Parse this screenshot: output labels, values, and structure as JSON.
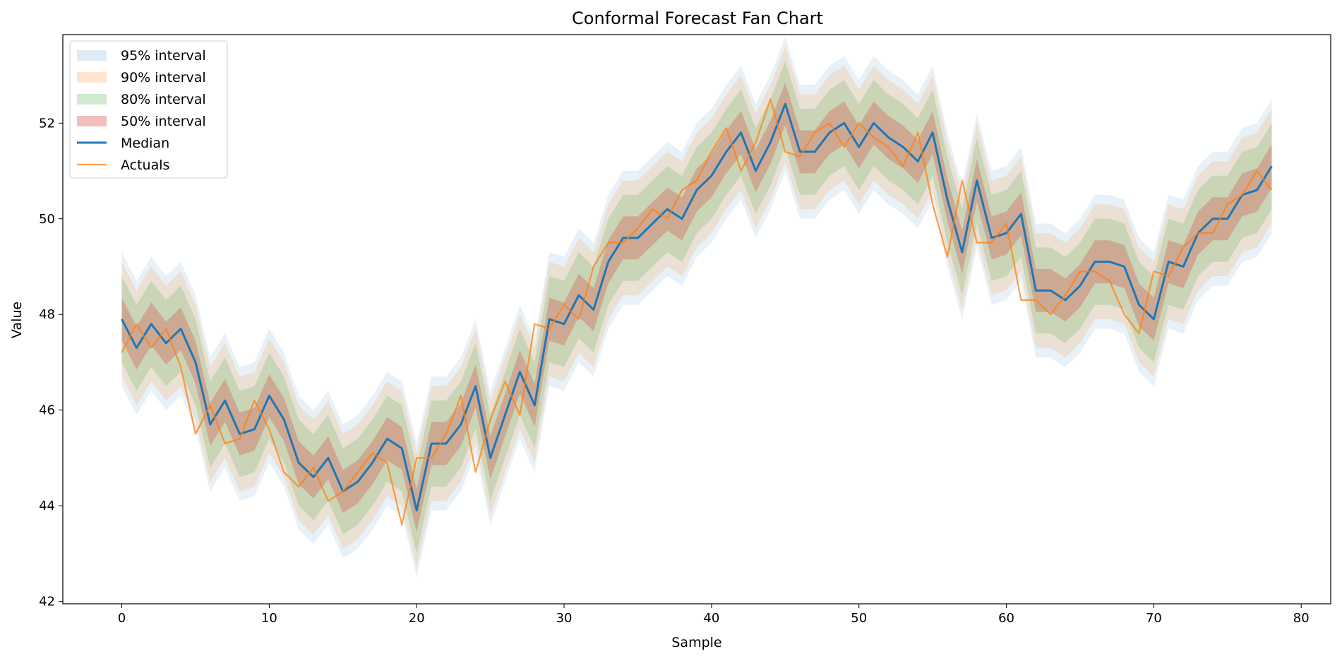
{
  "chart_data": {
    "type": "line",
    "title": "Conformal Forecast Fan Chart",
    "xlabel": "Sample",
    "ylabel": "Value",
    "xlim": [
      -4,
      82
    ],
    "ylim": [
      41.95,
      53.85
    ],
    "x_ticks": [
      0,
      10,
      20,
      30,
      40,
      50,
      60,
      70,
      80
    ],
    "y_ticks": [
      42,
      44,
      46,
      48,
      50,
      52
    ],
    "legend_position": "upper-left",
    "x": [
      0,
      1,
      2,
      3,
      4,
      5,
      6,
      7,
      8,
      9,
      10,
      11,
      12,
      13,
      14,
      15,
      16,
      17,
      18,
      19,
      20,
      21,
      22,
      23,
      24,
      25,
      26,
      27,
      28,
      29,
      30,
      31,
      32,
      33,
      34,
      35,
      36,
      37,
      38,
      39,
      40,
      41,
      42,
      43,
      44,
      45,
      46,
      47,
      48,
      49,
      50,
      51,
      52,
      53,
      54,
      55,
      56,
      57,
      58,
      59,
      60,
      61,
      62,
      63,
      64,
      65,
      66,
      67,
      68,
      69,
      70,
      71,
      72,
      73,
      74,
      75,
      76,
      77,
      78
    ],
    "median": [
      47.9,
      47.3,
      47.8,
      47.4,
      47.7,
      47.0,
      45.7,
      46.2,
      45.5,
      45.6,
      46.3,
      45.8,
      44.9,
      44.6,
      45.0,
      44.3,
      44.5,
      44.9,
      45.4,
      45.2,
      43.9,
      45.3,
      45.3,
      45.7,
      46.5,
      45.0,
      45.9,
      46.8,
      46.1,
      47.9,
      47.8,
      48.4,
      48.1,
      49.1,
      49.6,
      49.6,
      49.9,
      50.2,
      50.0,
      50.6,
      50.9,
      51.4,
      51.8,
      51.0,
      51.6,
      52.4,
      51.4,
      51.4,
      51.8,
      52.0,
      51.5,
      52.0,
      51.7,
      51.5,
      51.2,
      51.8,
      50.4,
      49.3,
      50.8,
      49.6,
      49.7,
      50.1,
      48.5,
      48.5,
      48.3,
      48.6,
      49.1,
      49.1,
      49.0,
      48.2,
      47.9,
      49.1,
      49.0,
      49.7,
      50.0,
      50.0,
      50.5,
      50.6,
      51.1
    ],
    "half_widths": {
      "95": 1.4,
      "90": 1.2,
      "80": 0.9,
      "50": 0.45
    },
    "series": [
      {
        "name": "95% interval",
        "kind": "band",
        "level": "95",
        "color": "#1f77b4",
        "opacity": 0.1
      },
      {
        "name": "90% interval",
        "kind": "band",
        "level": "90",
        "color": "#ff7f0e",
        "opacity": 0.15
      },
      {
        "name": "80% interval",
        "kind": "band",
        "level": "80",
        "color": "#2ca02c",
        "opacity": 0.17
      },
      {
        "name": "50% interval",
        "kind": "band",
        "level": "50",
        "color": "#d62728",
        "opacity": 0.25
      },
      {
        "name": "Median",
        "kind": "line",
        "color": "#1f77b4",
        "width": 3
      },
      {
        "name": "Actuals",
        "kind": "line",
        "color": "#ff7f0e",
        "width": 2.2,
        "opacity": 0.75,
        "values": [
          47.2,
          47.8,
          47.3,
          47.7,
          46.9,
          45.5,
          46.1,
          45.3,
          45.4,
          46.2,
          45.6,
          44.7,
          44.4,
          44.8,
          44.1,
          44.3,
          44.7,
          45.1,
          44.9,
          43.6,
          45.0,
          45.0,
          45.5,
          46.3,
          44.7,
          45.8,
          46.6,
          45.9,
          47.8,
          47.7,
          48.2,
          47.9,
          49.0,
          49.5,
          49.5,
          49.8,
          50.2,
          50.0,
          50.6,
          50.8,
          51.4,
          51.9,
          51.0,
          51.6,
          52.5,
          51.4,
          51.3,
          51.8,
          52.0,
          51.5,
          52.0,
          51.7,
          51.5,
          51.1,
          51.8,
          50.3,
          49.2,
          50.8,
          49.5,
          49.5,
          49.9,
          48.3,
          48.3,
          48.0,
          48.4,
          48.9,
          48.9,
          48.7,
          48.0,
          47.6,
          48.9,
          48.8,
          49.4,
          49.7,
          49.7,
          50.3,
          50.5,
          51.0,
          50.6
        ]
      }
    ]
  }
}
